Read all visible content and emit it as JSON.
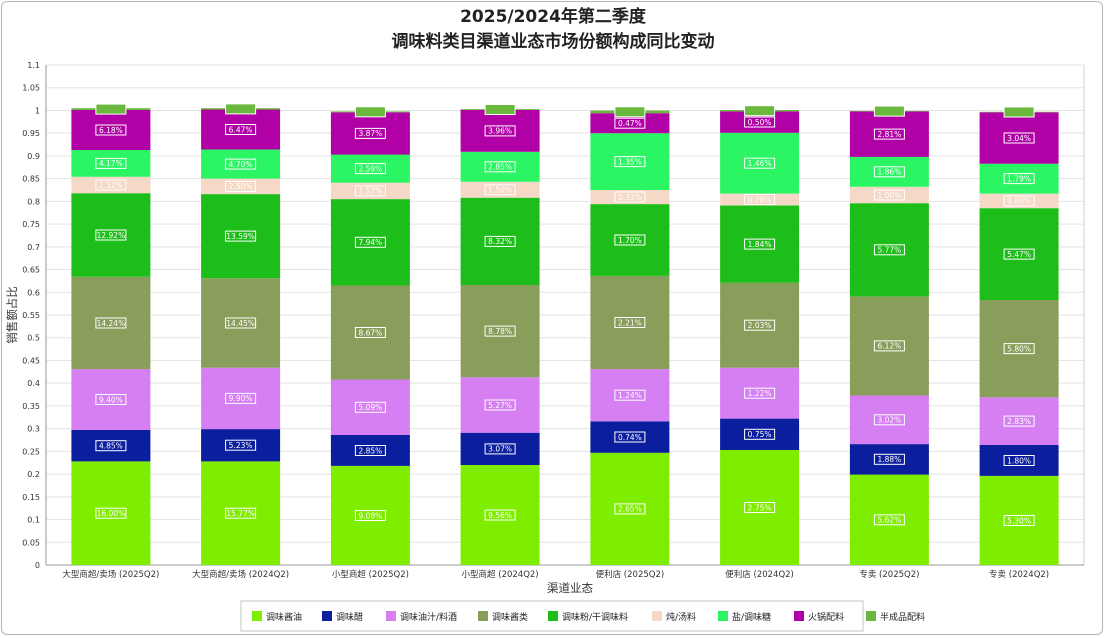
{
  "chart_data": {
    "type": "bar",
    "stacked": true,
    "title": "2025/2024年第二季度",
    "subtitle": "调味料类目渠道业态市场份额构成同比变动",
    "xlabel": "渠道业态",
    "ylabel": "销售额占比",
    "ylim": [
      0,
      1.1
    ],
    "yticks": [
      "0",
      "0.05",
      "0.1",
      "0.15",
      "0.2",
      "0.25",
      "0.3",
      "0.35",
      "0.4",
      "0.45",
      "0.5",
      "0.55",
      "0.6",
      "0.65",
      "0.7",
      "0.75",
      "0.8",
      "0.85",
      "0.9",
      "0.95",
      "1",
      "1.05",
      "1.1"
    ],
    "grid": true,
    "legend_position": "bottom",
    "categories": [
      "大型商超/卖场 (2025Q2)",
      "大型商超/卖场 (2024Q2)",
      "小型商超 (2025Q2)",
      "小型商超 (2024Q2)",
      "便利店 (2025Q2)",
      "便利店 (2024Q2)",
      "专卖 (2025Q2)",
      "专卖 (2024Q2)"
    ],
    "series": [
      {
        "name": "调味酱油",
        "color": "#7fed00",
        "label_text_color": "#ffffff",
        "labels": [
          "16.00%",
          "15.77%",
          "9.08%",
          "9.56%",
          "2.65%",
          "2.75%",
          "5.62%",
          "5.30%"
        ],
        "values": [
          0.228,
          0.228,
          0.218,
          0.22,
          0.247,
          0.253,
          0.199,
          0.196
        ]
      },
      {
        "name": "调味醋",
        "color": "#0b1f9e",
        "label_text_color": "#ffffff",
        "labels": [
          "4.85%",
          "5.23%",
          "2.85%",
          "3.07%",
          "0.74%",
          "0.75%",
          "1.88%",
          "1.80%"
        ],
        "values": [
          0.069,
          0.071,
          0.068,
          0.071,
          0.069,
          0.069,
          0.067,
          0.068
        ]
      },
      {
        "name": "调味油汁/料酒",
        "color": "#d57ff2",
        "label_text_color": "#ffffff",
        "labels": [
          "9.40%",
          "9.90%",
          "5.09%",
          "5.27%",
          "1.24%",
          "1.22%",
          "3.02%",
          "2.83%"
        ],
        "values": [
          0.134,
          0.135,
          0.122,
          0.122,
          0.115,
          0.112,
          0.107,
          0.105
        ]
      },
      {
        "name": "调味酱类",
        "color": "#8a9e5c",
        "label_text_color": "#ffffff",
        "labels": [
          "14.24%",
          "14.45%",
          "8.67%",
          "8.78%",
          "2.21%",
          "2.03%",
          "6.12%",
          "5.80%"
        ],
        "values": [
          0.203,
          0.197,
          0.207,
          0.203,
          0.205,
          0.187,
          0.218,
          0.214
        ]
      },
      {
        "name": "调味粉/干调味料",
        "color": "#1ebe1a",
        "label_text_color": "#ffffff",
        "labels": [
          "12.92%",
          "13.59%",
          "7.94%",
          "8.32%",
          "1.70%",
          "1.84%",
          "5.77%",
          "5.47%"
        ],
        "values": [
          0.184,
          0.185,
          0.19,
          0.192,
          0.158,
          0.17,
          0.205,
          0.202
        ]
      },
      {
        "name": "炖/汤料",
        "color": "#f5d9c6",
        "label_text_color": "#ffffff",
        "labels": [
          "2.52%",
          "2.50%",
          "1.52%",
          "1.50%",
          "0.33%",
          "0.28%",
          "1.00%",
          "0.86%"
        ],
        "values": [
          0.036,
          0.034,
          0.036,
          0.035,
          0.031,
          0.026,
          0.036,
          0.032
        ]
      },
      {
        "name": "盐/调味糖",
        "color": "#2cf563",
        "label_text_color": "#ffffff",
        "labels": [
          "4.17%",
          "4.70%",
          "2.59%",
          "2.85%",
          "1.35%",
          "1.46%",
          "1.86%",
          "1.79%"
        ],
        "values": [
          0.059,
          0.064,
          0.062,
          0.066,
          0.125,
          0.134,
          0.066,
          0.066
        ]
      },
      {
        "name": "火锅配料",
        "color": "#b000a6",
        "label_text_color": "#ffffff",
        "labels": [
          "6.18%",
          "6.47%",
          "3.87%",
          "3.96%",
          "0.47%",
          "0.50%",
          "2.81%",
          "3.04%"
        ],
        "values": [
          0.088,
          0.088,
          0.093,
          0.092,
          0.044,
          0.047,
          0.1,
          0.113
        ]
      },
      {
        "name": "半成品配料",
        "color": "#6ab83e",
        "label_text_color": "#6ab83e",
        "labels": [
          "0.29%",
          "0.19%",
          "0.10%",
          "0.09%",
          "0.07%",
          "0.03%",
          "0.04%",
          "0.03%"
        ],
        "values": [
          0.004,
          0.003,
          0.002,
          0.002,
          0.006,
          0.003,
          0.001,
          0.001
        ]
      }
    ]
  }
}
